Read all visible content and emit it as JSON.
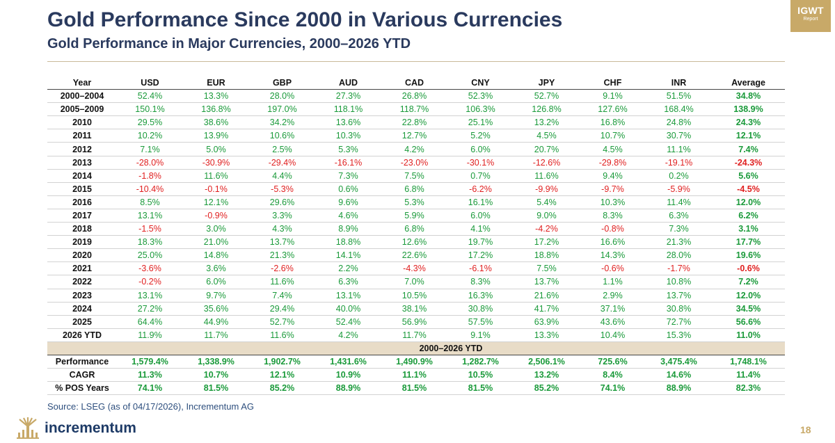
{
  "header": {
    "title": "Gold Performance Since 2000 in Various Currencies",
    "subtitle": "Gold Performance in Major Currencies, 2000–2026 YTD"
  },
  "badge": {
    "main": "IGWT",
    "sub": "Report"
  },
  "table": {
    "columns": [
      "Year",
      "USD",
      "EUR",
      "GBP",
      "AUD",
      "CAD",
      "CNY",
      "JPY",
      "CHF",
      "INR",
      "Average"
    ],
    "rows": [
      [
        "2000–2004",
        "52.4%",
        "13.3%",
        "28.0%",
        "27.3%",
        "26.8%",
        "52.3%",
        "52.7%",
        "9.1%",
        "51.5%",
        "34.8%"
      ],
      [
        "2005–2009",
        "150.1%",
        "136.8%",
        "197.0%",
        "118.1%",
        "118.7%",
        "106.3%",
        "126.8%",
        "127.6%",
        "168.4%",
        "138.9%"
      ],
      [
        "2010",
        "29.5%",
        "38.6%",
        "34.2%",
        "13.6%",
        "22.8%",
        "25.1%",
        "13.2%",
        "16.8%",
        "24.8%",
        "24.3%"
      ],
      [
        "2011",
        "10.2%",
        "13.9%",
        "10.6%",
        "10.3%",
        "12.7%",
        "5.2%",
        "4.5%",
        "10.7%",
        "30.7%",
        "12.1%"
      ],
      [
        "2012",
        "7.1%",
        "5.0%",
        "2.5%",
        "5.3%",
        "4.2%",
        "6.0%",
        "20.7%",
        "4.5%",
        "11.1%",
        "7.4%"
      ],
      [
        "2013",
        "-28.0%",
        "-30.9%",
        "-29.4%",
        "-16.1%",
        "-23.0%",
        "-30.1%",
        "-12.6%",
        "-29.8%",
        "-19.1%",
        "-24.3%"
      ],
      [
        "2014",
        "-1.8%",
        "11.6%",
        "4.4%",
        "7.3%",
        "7.5%",
        "0.7%",
        "11.6%",
        "9.4%",
        "0.2%",
        "5.6%"
      ],
      [
        "2015",
        "-10.4%",
        "-0.1%",
        "-5.3%",
        "0.6%",
        "6.8%",
        "-6.2%",
        "-9.9%",
        "-9.7%",
        "-5.9%",
        "-4.5%"
      ],
      [
        "2016",
        "8.5%",
        "12.1%",
        "29.6%",
        "9.6%",
        "5.3%",
        "16.1%",
        "5.4%",
        "10.3%",
        "11.4%",
        "12.0%"
      ],
      [
        "2017",
        "13.1%",
        "-0.9%",
        "3.3%",
        "4.6%",
        "5.9%",
        "6.0%",
        "9.0%",
        "8.3%",
        "6.3%",
        "6.2%"
      ],
      [
        "2018",
        "-1.5%",
        "3.0%",
        "4.3%",
        "8.9%",
        "6.8%",
        "4.1%",
        "-4.2%",
        "-0.8%",
        "7.3%",
        "3.1%"
      ],
      [
        "2019",
        "18.3%",
        "21.0%",
        "13.7%",
        "18.8%",
        "12.6%",
        "19.7%",
        "17.2%",
        "16.6%",
        "21.3%",
        "17.7%"
      ],
      [
        "2020",
        "25.0%",
        "14.8%",
        "21.3%",
        "14.1%",
        "22.6%",
        "17.2%",
        "18.8%",
        "14.3%",
        "28.0%",
        "19.6%"
      ],
      [
        "2021",
        "-3.6%",
        "3.6%",
        "-2.6%",
        "2.2%",
        "-4.3%",
        "-6.1%",
        "7.5%",
        "-0.6%",
        "-1.7%",
        "-0.6%"
      ],
      [
        "2022",
        "-0.2%",
        "6.0%",
        "11.6%",
        "6.3%",
        "7.0%",
        "8.3%",
        "13.7%",
        "1.1%",
        "10.8%",
        "7.2%"
      ],
      [
        "2023",
        "13.1%",
        "9.7%",
        "7.4%",
        "13.1%",
        "10.5%",
        "16.3%",
        "21.6%",
        "2.9%",
        "13.7%",
        "12.0%"
      ],
      [
        "2024",
        "27.2%",
        "35.6%",
        "29.4%",
        "40.0%",
        "38.1%",
        "30.8%",
        "41.7%",
        "37.1%",
        "30.8%",
        "34.5%"
      ],
      [
        "2025",
        "64.4%",
        "44.9%",
        "52.7%",
        "52.4%",
        "56.9%",
        "57.5%",
        "63.9%",
        "43.6%",
        "72.7%",
        "56.6%"
      ],
      [
        "2026 YTD",
        "11.9%",
        "11.7%",
        "11.6%",
        "4.2%",
        "11.7%",
        "9.1%",
        "13.3%",
        "10.4%",
        "15.3%",
        "11.0%"
      ]
    ],
    "band_label": "2000–2026 YTD",
    "summary": [
      [
        "Performance",
        "1,579.4%",
        "1,338.9%",
        "1,902.7%",
        "1,431.6%",
        "1,490.9%",
        "1,282.7%",
        "2,506.1%",
        "725.6%",
        "3,475.4%",
        "1,748.1%"
      ],
      [
        "CAGR",
        "11.3%",
        "10.7%",
        "12.1%",
        "10.9%",
        "11.1%",
        "10.5%",
        "13.2%",
        "8.4%",
        "14.6%",
        "11.4%"
      ],
      [
        "% POS Years",
        "74.1%",
        "81.5%",
        "85.2%",
        "88.9%",
        "81.5%",
        "81.5%",
        "85.2%",
        "74.1%",
        "88.9%",
        "82.3%"
      ]
    ]
  },
  "colors": {
    "positive": "#1a9a3a",
    "negative": "#e02020",
    "navy": "#2a3a5e",
    "gold": "#c8a968",
    "band": "#e8dcc7"
  },
  "footer": {
    "source": "Source: LSEG (as of 04/17/2026), Incrementum AG",
    "logo_text": "incrementum",
    "page_number": "18"
  }
}
